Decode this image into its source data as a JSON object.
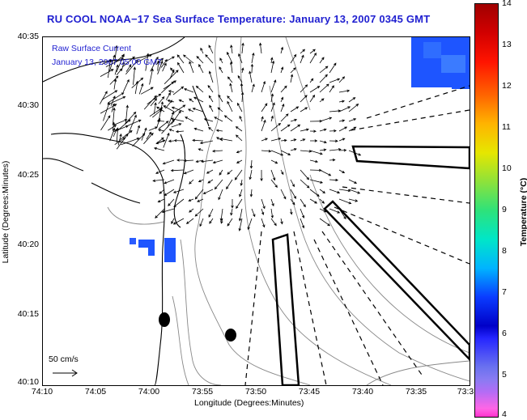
{
  "title": "RU COOL  NOAA−17  Sea Surface Temperature:  January 13, 2007 0345 GMT",
  "legend": {
    "line1": "Raw Surface Current",
    "line2": "January 13, 2007 05:00 GMT"
  },
  "axes": {
    "xlabel": "Longitude (Degrees:Minutes)",
    "ylabel": "Latitude (Degrees:Minutes)",
    "xticks": [
      "74:10",
      "74:05",
      "74:00",
      "73:55",
      "73:50",
      "73:45",
      "73:40",
      "73:35",
      "73:3"
    ],
    "yticks": [
      "40:35",
      "40:30",
      "40:25",
      "40:20",
      "40:15",
      "40:10"
    ]
  },
  "colorbar": {
    "label": "Temperature (°C)",
    "ticks": [
      "14",
      "13",
      "12",
      "11",
      "10",
      "9",
      "8",
      "7",
      "6",
      "5",
      "4"
    ],
    "range": [
      4,
      14
    ]
  },
  "scale_arrow": {
    "label": "50 cm/s"
  },
  "colors": {
    "title": "#1f1fd0",
    "sst_patch": "#1e50ff",
    "sst_patch_alt": "#3a7cff"
  }
}
